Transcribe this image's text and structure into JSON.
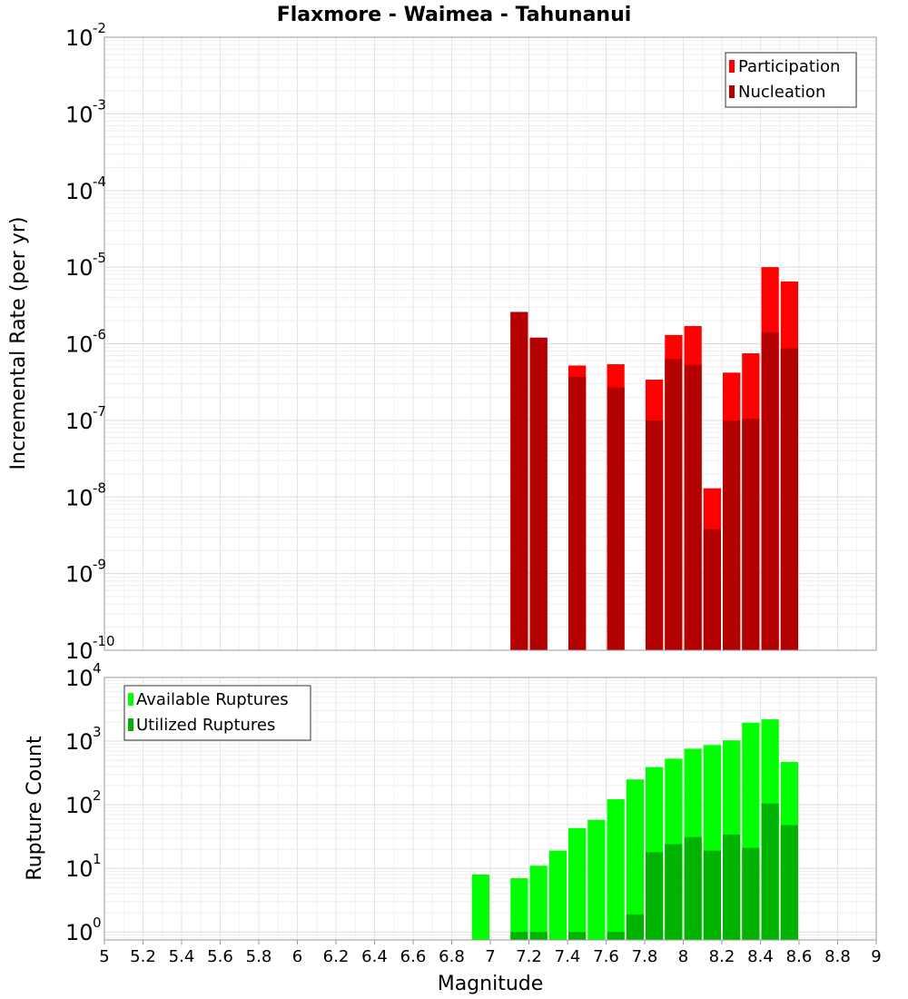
{
  "chart_data": {
    "title": "Flaxmore - Waimea - Tahunanui",
    "xlabel": "Magnitude",
    "xlim": [
      5,
      9
    ],
    "xticks": [
      "5",
      "5.2",
      "5.4",
      "5.6",
      "5.8",
      "6",
      "6.2",
      "6.4",
      "6.6",
      "6.8",
      "7",
      "7.2",
      "7.4",
      "7.6",
      "7.8",
      "8",
      "8.2",
      "8.4",
      "8.6",
      "8.8",
      "9"
    ],
    "bin_width": 0.1,
    "panels": [
      {
        "type": "bar",
        "ylabel": "Incremental Rate (per yr)",
        "yscale": "log",
        "ylim": [
          1e-10,
          0.01
        ],
        "ytick_exponents": [
          -10,
          -9,
          -8,
          -7,
          -6,
          -5,
          -4,
          -3,
          -2
        ],
        "legend_position": "top-right",
        "series": [
          {
            "name": "Participation",
            "color": "#ff0000",
            "x": [
              7.15,
              7.25,
              7.45,
              7.65,
              7.85,
              7.95,
              8.05,
              8.15,
              8.25,
              8.35,
              8.45,
              8.55
            ],
            "values": [
              2.6e-06,
              1.2e-06,
              5.2e-07,
              5.4e-07,
              3.4e-07,
              1.3e-06,
              1.7e-06,
              1.3e-08,
              4.2e-07,
              7.5e-07,
              1e-05,
              6.5e-06
            ]
          },
          {
            "name": "Nucleation",
            "color": "#b30000",
            "x": [
              7.15,
              7.25,
              7.45,
              7.65,
              7.85,
              7.95,
              8.05,
              8.15,
              8.25,
              8.35,
              8.45,
              8.55
            ],
            "values": [
              2.6e-06,
              1.2e-06,
              3.7e-07,
              2.7e-07,
              1e-07,
              6.3e-07,
              5.3e-07,
              3.8e-09,
              1e-07,
              1.05e-07,
              1.4e-06,
              8.7e-07
            ]
          }
        ]
      },
      {
        "type": "bar",
        "ylabel": "Rupture Count",
        "yscale": "log",
        "ylim": [
          0.75,
          10000
        ],
        "ytick_exponents": [
          0,
          1,
          2,
          3,
          4
        ],
        "legend_position": "top-left",
        "series": [
          {
            "name": "Available Ruptures",
            "color": "#00ff00",
            "x": [
              6.95,
              7.15,
              7.25,
              7.35,
              7.45,
              7.55,
              7.65,
              7.75,
              7.85,
              7.95,
              8.05,
              8.15,
              8.25,
              8.35,
              8.45,
              8.55
            ],
            "values": [
              8,
              7,
              11,
              19,
              43,
              58,
              122,
              250,
              390,
              530,
              760,
              870,
              1030,
              1950,
              2200,
              470
            ]
          },
          {
            "name": "Utilized Ruptures",
            "color": "#00b300",
            "x": [
              7.15,
              7.25,
              7.45,
              7.65,
              7.75,
              7.85,
              7.95,
              8.05,
              8.15,
              8.25,
              8.35,
              8.45,
              8.55
            ],
            "values": [
              1,
              1,
              1,
              1,
              1.9,
              18,
              24,
              31,
              19,
              34,
              21,
              105,
              48
            ]
          }
        ]
      }
    ]
  }
}
